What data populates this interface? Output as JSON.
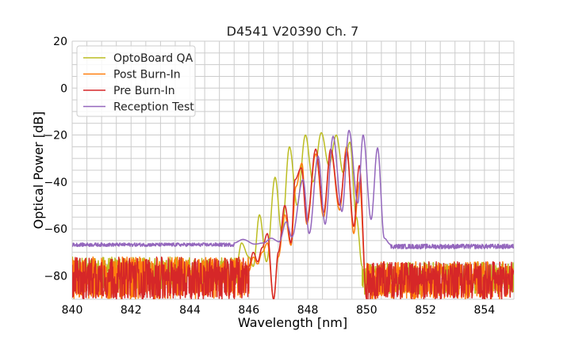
{
  "chart_data": {
    "type": "line",
    "title": "D4541 V20390 Ch. 7",
    "xlabel": "Wavelength [nm]",
    "ylabel": "Optical Power [dB]",
    "xlim": [
      840,
      855
    ],
    "ylim": [
      -90,
      20
    ],
    "x_ticks": [
      840,
      842,
      844,
      846,
      848,
      850,
      852,
      854
    ],
    "y_ticks": [
      20,
      0,
      -20,
      -40,
      -60,
      -80
    ],
    "x_tick_labels": [
      "840",
      "842",
      "844",
      "846",
      "848",
      "850",
      "852",
      "854"
    ],
    "y_tick_labels": [
      "20",
      "0",
      "−20",
      "−40",
      "−60",
      "−80"
    ],
    "grid": true,
    "grid_x_step": 0.5,
    "grid_y_step": 5,
    "legend_position": "top-left",
    "series": [
      {
        "name": "OptoBoard QA",
        "color": "#bcbd22",
        "noise": [
          {
            "from": 840,
            "to": 845.6,
            "range": [
              -86,
              -72
            ]
          },
          {
            "from": 849.85,
            "to": 855,
            "range": [
              -88,
              -74
            ]
          }
        ],
        "points": [
          [
            845.6,
            -74
          ],
          [
            845.75,
            -66
          ],
          [
            846.0,
            -72
          ],
          [
            846.15,
            -76
          ],
          [
            846.36,
            -54
          ],
          [
            846.6,
            -74
          ],
          [
            846.89,
            -38
          ],
          [
            847.12,
            -62
          ],
          [
            847.38,
            -25
          ],
          [
            847.64,
            -50
          ],
          [
            847.92,
            -20
          ],
          [
            848.18,
            -40
          ],
          [
            848.46,
            -19
          ],
          [
            848.72,
            -33
          ],
          [
            848.97,
            -20
          ],
          [
            849.2,
            -36
          ],
          [
            849.43,
            -23
          ],
          [
            849.65,
            -55
          ],
          [
            849.85,
            -76
          ]
        ]
      },
      {
        "name": "Post Burn-In",
        "color": "#ff7f0e",
        "noise": [
          {
            "from": 840,
            "to": 846.0,
            "range": [
              -90,
              -72
            ]
          },
          {
            "from": 850.0,
            "to": 855,
            "range": [
              -90,
              -74
            ]
          }
        ],
        "points": [
          [
            846.0,
            -78
          ],
          [
            846.15,
            -72
          ],
          [
            846.3,
            -75
          ],
          [
            846.45,
            -70
          ],
          [
            846.63,
            -66
          ],
          [
            846.84,
            -90
          ],
          [
            847.0,
            -72
          ],
          [
            847.22,
            -54
          ],
          [
            847.43,
            -67
          ],
          [
            847.6,
            -42
          ],
          [
            847.8,
            -32
          ],
          [
            847.97,
            -58
          ],
          [
            848.27,
            -28
          ],
          [
            848.54,
            -55
          ],
          [
            848.78,
            -27
          ],
          [
            849.08,
            -52
          ],
          [
            849.32,
            -25
          ],
          [
            849.56,
            -62
          ],
          [
            849.75,
            -40
          ],
          [
            850.0,
            -90
          ]
        ]
      },
      {
        "name": "Pre Burn-In",
        "color": "#d62728",
        "noise": [
          {
            "from": 840,
            "to": 846.0,
            "range": [
              -90,
              -72
            ]
          },
          {
            "from": 850.0,
            "to": 855,
            "range": [
              -90,
              -74
            ]
          }
        ],
        "points": [
          [
            846.0,
            -76
          ],
          [
            846.15,
            -70
          ],
          [
            846.3,
            -74
          ],
          [
            846.45,
            -68
          ],
          [
            846.63,
            -62
          ],
          [
            846.84,
            -90
          ],
          [
            847.0,
            -70
          ],
          [
            847.22,
            -50
          ],
          [
            847.43,
            -66
          ],
          [
            847.57,
            -39
          ],
          [
            847.78,
            -34
          ],
          [
            847.97,
            -57
          ],
          [
            848.27,
            -26
          ],
          [
            848.54,
            -53
          ],
          [
            848.78,
            -26
          ],
          [
            849.08,
            -50
          ],
          [
            849.32,
            -27
          ],
          [
            849.56,
            -59
          ],
          [
            849.75,
            -33
          ],
          [
            850.0,
            -90
          ]
        ]
      },
      {
        "name": "Reception Test",
        "color": "#9467bd",
        "noise": [
          {
            "from": 840,
            "to": 845.5,
            "range": [
              -67.5,
              -66
            ]
          },
          {
            "from": 850.8,
            "to": 855,
            "range": [
              -68.5,
              -66.5
            ]
          }
        ],
        "points": [
          [
            845.5,
            -66
          ],
          [
            845.8,
            -64.5
          ],
          [
            846.2,
            -66.5
          ],
          [
            846.5,
            -66
          ],
          [
            846.76,
            -64
          ],
          [
            847.03,
            -65.5
          ],
          [
            847.27,
            -57
          ],
          [
            847.46,
            -63.5
          ],
          [
            847.84,
            -39
          ],
          [
            848.05,
            -62
          ],
          [
            848.35,
            -29
          ],
          [
            848.59,
            -58
          ],
          [
            848.86,
            -20.5
          ],
          [
            849.16,
            -52.6
          ],
          [
            849.4,
            -18
          ],
          [
            849.7,
            -49
          ],
          [
            849.88,
            -20
          ],
          [
            850.15,
            -56
          ],
          [
            850.37,
            -25.5
          ],
          [
            850.6,
            -64
          ],
          [
            850.8,
            -66.5
          ]
        ]
      }
    ]
  }
}
